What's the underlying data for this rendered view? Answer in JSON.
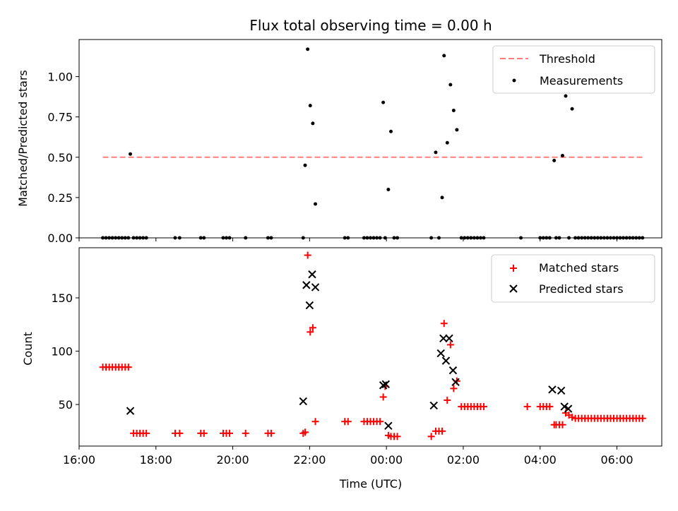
{
  "chart_data": [
    {
      "type": "scatter",
      "title": "Flux total observing time = 0.00 h",
      "xlabel": "",
      "ylabel": "Matched/Predicted stars",
      "xlim": [
        "16:00",
        "07:10"
      ],
      "ylim": [
        0,
        1.23
      ],
      "yticks": [
        0.0,
        0.25,
        0.5,
        0.75,
        1.0
      ],
      "ytick_labels": [
        "0.00",
        "0.25",
        "0.50",
        "0.75",
        "1.00"
      ],
      "legend_position": "top-right",
      "legend": [
        "Threshold",
        "Measurements"
      ],
      "series": [
        {
          "name": "Threshold",
          "style": "dashed-line",
          "color": "#ff7f7f",
          "x": [
            "16:37",
            "06:40"
          ],
          "y": [
            0.5,
            0.5
          ]
        },
        {
          "name": "Measurements",
          "style": "dot",
          "color": "#000000",
          "points": [
            [
              "16:37",
              0
            ],
            [
              "16:42",
              0
            ],
            [
              "16:47",
              0
            ],
            [
              "16:52",
              0
            ],
            [
              "16:57",
              0
            ],
            [
              "17:02",
              0
            ],
            [
              "17:07",
              0
            ],
            [
              "17:12",
              0
            ],
            [
              "17:17",
              0
            ],
            [
              "17:20",
              0.52
            ],
            [
              "17:25",
              0
            ],
            [
              "17:30",
              0
            ],
            [
              "17:35",
              0
            ],
            [
              "17:40",
              0
            ],
            [
              "17:45",
              0
            ],
            [
              "18:30",
              0
            ],
            [
              "18:37",
              0
            ],
            [
              "19:10",
              0
            ],
            [
              "19:15",
              0
            ],
            [
              "19:45",
              0
            ],
            [
              "19:50",
              0
            ],
            [
              "19:55",
              0
            ],
            [
              "20:20",
              0
            ],
            [
              "20:55",
              0
            ],
            [
              "21:00",
              0
            ],
            [
              "21:50",
              0
            ],
            [
              "21:53",
              0.45
            ],
            [
              "21:57",
              1.17
            ],
            [
              "22:01",
              0.82
            ],
            [
              "22:05",
              0.71
            ],
            [
              "22:09",
              0.21
            ],
            [
              "22:55",
              0
            ],
            [
              "23:00",
              0
            ],
            [
              "23:25",
              0
            ],
            [
              "23:30",
              0
            ],
            [
              "23:35",
              0
            ],
            [
              "23:40",
              0
            ],
            [
              "23:45",
              0
            ],
            [
              "23:50",
              0
            ],
            [
              "23:55",
              0.84
            ],
            [
              "23:58",
              0
            ],
            [
              "00:03",
              0.3
            ],
            [
              "00:07",
              0.66
            ],
            [
              "00:12",
              0
            ],
            [
              "00:17",
              0
            ],
            [
              "01:10",
              0
            ],
            [
              "01:17",
              0.53
            ],
            [
              "01:22",
              0
            ],
            [
              "01:27",
              0.25
            ],
            [
              "01:30",
              1.13
            ],
            [
              "01:35",
              0.59
            ],
            [
              "01:40",
              0.95
            ],
            [
              "01:45",
              0.79
            ],
            [
              "01:50",
              0.67
            ],
            [
              "01:57",
              0
            ],
            [
              "02:02",
              0
            ],
            [
              "02:07",
              0
            ],
            [
              "02:12",
              0
            ],
            [
              "02:17",
              0
            ],
            [
              "02:22",
              0
            ],
            [
              "02:27",
              0
            ],
            [
              "02:32",
              0
            ],
            [
              "03:30",
              0
            ],
            [
              "04:00",
              0
            ],
            [
              "04:05",
              0
            ],
            [
              "04:10",
              0
            ],
            [
              "04:15",
              0
            ],
            [
              "04:22",
              0.48
            ],
            [
              "04:25",
              0
            ],
            [
              "04:30",
              0
            ],
            [
              "04:35",
              0.51
            ],
            [
              "04:40",
              0.88
            ],
            [
              "04:45",
              0
            ],
            [
              "04:50",
              0.8
            ],
            [
              "04:55",
              0
            ],
            [
              "05:00",
              0
            ],
            [
              "05:05",
              0
            ],
            [
              "05:10",
              0
            ],
            [
              "05:15",
              0
            ],
            [
              "05:20",
              0
            ],
            [
              "05:25",
              0
            ],
            [
              "05:30",
              0
            ],
            [
              "05:35",
              0
            ],
            [
              "05:40",
              0
            ],
            [
              "05:45",
              0
            ],
            [
              "05:50",
              0
            ],
            [
              "05:55",
              0
            ],
            [
              "06:00",
              0
            ],
            [
              "06:05",
              0
            ],
            [
              "06:10",
              0
            ],
            [
              "06:15",
              0
            ],
            [
              "06:20",
              0
            ],
            [
              "06:25",
              0
            ],
            [
              "06:30",
              0
            ],
            [
              "06:35",
              0
            ],
            [
              "06:40",
              0
            ]
          ]
        }
      ]
    },
    {
      "type": "scatter",
      "title": "",
      "xlabel": "Time (UTC)",
      "ylabel": "Count",
      "xlim": [
        "16:00",
        "07:10"
      ],
      "ylim": [
        11,
        197
      ],
      "yticks": [
        50,
        100,
        150
      ],
      "ytick_labels": [
        "50",
        "100",
        "150"
      ],
      "xticks": [
        "16:00",
        "18:00",
        "20:00",
        "22:00",
        "00:00",
        "02:00",
        "04:00",
        "06:00"
      ],
      "legend_position": "top-right",
      "legend": [
        "Matched stars",
        "Predicted stars"
      ],
      "series": [
        {
          "name": "Matched stars",
          "marker": "plus",
          "color": "#ff0000",
          "points": [
            [
              "16:37",
              85
            ],
            [
              "16:42",
              85
            ],
            [
              "16:47",
              85
            ],
            [
              "16:52",
              85
            ],
            [
              "16:57",
              85
            ],
            [
              "17:02",
              85
            ],
            [
              "17:07",
              85
            ],
            [
              "17:12",
              85
            ],
            [
              "17:17",
              85
            ],
            [
              "17:25",
              23
            ],
            [
              "17:30",
              23
            ],
            [
              "17:35",
              23
            ],
            [
              "17:40",
              23
            ],
            [
              "17:45",
              23
            ],
            [
              "18:30",
              23
            ],
            [
              "18:37",
              23
            ],
            [
              "19:10",
              23
            ],
            [
              "19:15",
              23
            ],
            [
              "19:45",
              23
            ],
            [
              "19:50",
              23
            ],
            [
              "19:55",
              23
            ],
            [
              "20:20",
              23
            ],
            [
              "20:55",
              23
            ],
            [
              "21:00",
              23
            ],
            [
              "21:50",
              23
            ],
            [
              "21:53",
              24
            ],
            [
              "21:57",
              190
            ],
            [
              "22:01",
              118
            ],
            [
              "22:05",
              122
            ],
            [
              "22:09",
              34
            ],
            [
              "22:55",
              34
            ],
            [
              "23:00",
              34
            ],
            [
              "23:25",
              34
            ],
            [
              "23:30",
              34
            ],
            [
              "23:35",
              34
            ],
            [
              "23:40",
              34
            ],
            [
              "23:45",
              34
            ],
            [
              "23:50",
              34
            ],
            [
              "23:55",
              57
            ],
            [
              "23:58",
              67
            ],
            [
              "00:03",
              21
            ],
            [
              "00:07",
              20
            ],
            [
              "00:12",
              20
            ],
            [
              "00:17",
              20
            ],
            [
              "01:10",
              20
            ],
            [
              "01:17",
              25
            ],
            [
              "01:22",
              25
            ],
            [
              "01:27",
              25
            ],
            [
              "01:30",
              126
            ],
            [
              "01:35",
              54
            ],
            [
              "01:40",
              106
            ],
            [
              "01:45",
              65
            ],
            [
              "01:50",
              72
            ],
            [
              "01:57",
              48
            ],
            [
              "02:02",
              48
            ],
            [
              "02:07",
              48
            ],
            [
              "02:12",
              48
            ],
            [
              "02:17",
              48
            ],
            [
              "02:22",
              48
            ],
            [
              "02:27",
              48
            ],
            [
              "02:32",
              48
            ],
            [
              "03:40",
              48
            ],
            [
              "04:00",
              48
            ],
            [
              "04:05",
              48
            ],
            [
              "04:10",
              48
            ],
            [
              "04:15",
              48
            ],
            [
              "04:22",
              31
            ],
            [
              "04:25",
              31
            ],
            [
              "04:30",
              31
            ],
            [
              "04:35",
              31
            ],
            [
              "04:40",
              42
            ],
            [
              "04:45",
              40
            ],
            [
              "04:50",
              38
            ],
            [
              "04:55",
              37
            ],
            [
              "05:00",
              37
            ],
            [
              "05:05",
              37
            ],
            [
              "05:10",
              37
            ],
            [
              "05:15",
              37
            ],
            [
              "05:20",
              37
            ],
            [
              "05:25",
              37
            ],
            [
              "05:30",
              37
            ],
            [
              "05:35",
              37
            ],
            [
              "05:40",
              37
            ],
            [
              "05:45",
              37
            ],
            [
              "05:50",
              37
            ],
            [
              "05:55",
              37
            ],
            [
              "06:00",
              37
            ],
            [
              "06:05",
              37
            ],
            [
              "06:10",
              37
            ],
            [
              "06:15",
              37
            ],
            [
              "06:20",
              37
            ],
            [
              "06:25",
              37
            ],
            [
              "06:30",
              37
            ],
            [
              "06:35",
              37
            ],
            [
              "06:40",
              37
            ]
          ]
        },
        {
          "name": "Predicted stars",
          "marker": "x",
          "color": "#000000",
          "points": [
            [
              "17:20",
              44
            ],
            [
              "21:50",
              53
            ],
            [
              "21:55",
              162
            ],
            [
              "22:00",
              143
            ],
            [
              "22:04",
              172
            ],
            [
              "22:09",
              160
            ],
            [
              "23:55",
              68
            ],
            [
              "23:59",
              69
            ],
            [
              "00:03",
              30
            ],
            [
              "01:14",
              49
            ],
            [
              "01:25",
              98
            ],
            [
              "01:29",
              112
            ],
            [
              "01:33",
              91
            ],
            [
              "01:38",
              112
            ],
            [
              "01:44",
              82
            ],
            [
              "01:48",
              71
            ],
            [
              "04:19",
              64
            ],
            [
              "04:33",
              63
            ],
            [
              "04:38",
              48
            ],
            [
              "04:44",
              46
            ]
          ]
        }
      ]
    }
  ]
}
